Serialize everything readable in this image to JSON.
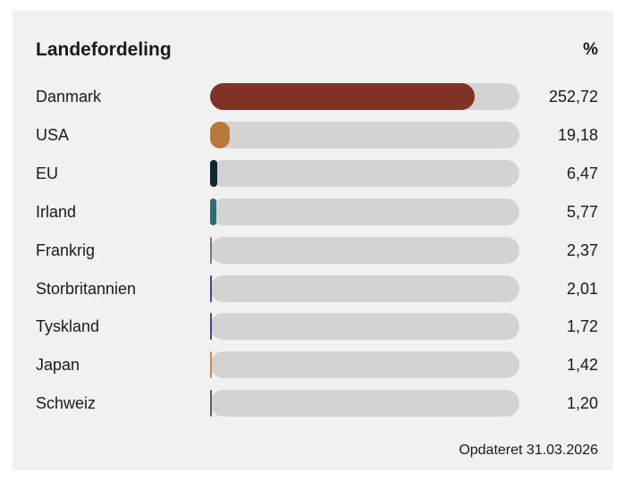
{
  "chart_data": {
    "type": "bar",
    "orientation": "horizontal",
    "title": "Landefordeling",
    "unit": "%",
    "categories": [
      "Danmark",
      "USA",
      "EU",
      "Irland",
      "Frankrig",
      "Storbritannien",
      "Tyskland",
      "Japan",
      "Schweiz"
    ],
    "values": [
      252.72,
      19.18,
      6.47,
      5.77,
      2.37,
      2.01,
      1.72,
      1.42,
      1.2
    ],
    "value_labels": [
      "252,72",
      "19,18",
      "6,47",
      "5,77",
      "2,37",
      "2,01",
      "1,72",
      "1,42",
      "1,20"
    ],
    "bar_fill_fractions": [
      0.855,
      0.064,
      0.022,
      0.02,
      0.007,
      0.006,
      0.005,
      0.004,
      0.003
    ],
    "colors": [
      "#813226",
      "#b8783a",
      "#102630",
      "#2d6e72",
      "#6d8088",
      "#5a3d84",
      "#3f4a8f",
      "#c98b4a",
      "#5f6548"
    ],
    "track_color": "#d3d3d3",
    "footer": "Opdateret 31.03.2026"
  }
}
